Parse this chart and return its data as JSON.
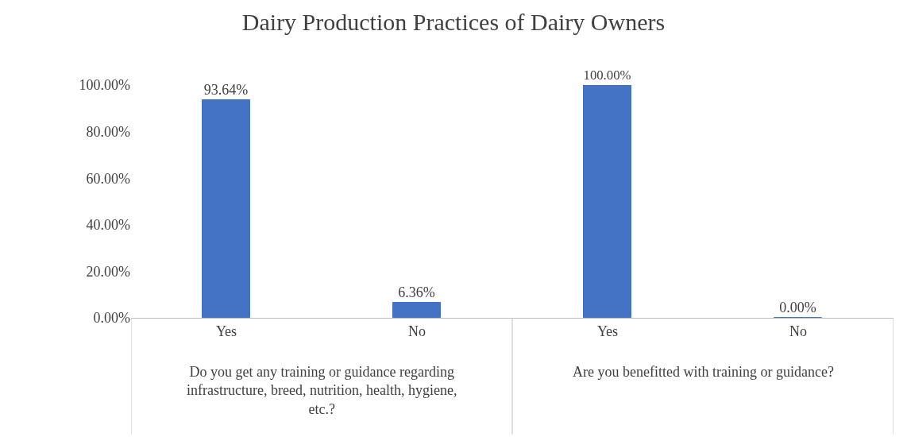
{
  "chart_data": {
    "type": "bar",
    "title": "Dairy Production Practices of Dairy Owners",
    "categories": [
      "Yes",
      "No",
      "Yes",
      "No"
    ],
    "values": [
      93.64,
      6.36,
      100,
      0
    ],
    "color": "#4472c4",
    "value_labels": [
      "93.64%",
      "6.36%",
      "100.00%",
      "0.00%"
    ],
    "ylim": [
      0,
      100
    ],
    "yticks": [
      {
        "value": 0,
        "label": "0.00%"
      },
      {
        "value": 20,
        "label": "20.00%"
      },
      {
        "value": 40,
        "label": "40.00%"
      },
      {
        "value": 60,
        "label": "60.00%"
      },
      {
        "value": 80,
        "label": "80.00%"
      },
      {
        "value": 100,
        "label": "100.00%"
      }
    ],
    "annotations": [
      "Do you get any training or guidance regarding infrastructure, breed, nutrition, health, hygiene, etc.?",
      "Are you benefitted with training or guidance?"
    ],
    "legend": false
  }
}
